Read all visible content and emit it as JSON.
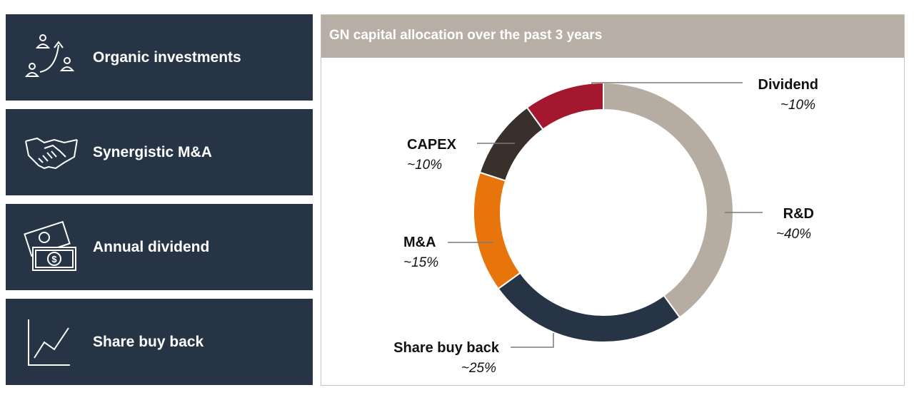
{
  "cards": [
    {
      "label": "Organic investments",
      "icon": "people-growth-icon"
    },
    {
      "label": "Synergistic M&A",
      "icon": "handshake-icon"
    },
    {
      "label": "Annual dividend",
      "icon": "banknotes-icon"
    },
    {
      "label": "Share buy back",
      "icon": "line-chart-icon"
    }
  ],
  "chart_data": {
    "type": "pie",
    "title": "GN capital allocation over the past 3 years",
    "donut": true,
    "slices": [
      {
        "label": "R&D",
        "value_label": "~40%",
        "value": 40,
        "color": "#b6aca2"
      },
      {
        "label": "Share buy back",
        "value_label": "~25%",
        "value": 25,
        "color": "#263446"
      },
      {
        "label": "M&A",
        "value_label": "~15%",
        "value": 15,
        "color": "#e8750b"
      },
      {
        "label": "CAPEX",
        "value_label": "~10%",
        "value": 10,
        "color": "#3a302b"
      },
      {
        "label": "Dividend",
        "value_label": "~10%",
        "value": 10,
        "color": "#a3182e"
      }
    ]
  },
  "colors": {
    "card_bg": "#263446",
    "header_bg": "#b7aea5",
    "leader_line": "#7a7a7a"
  }
}
